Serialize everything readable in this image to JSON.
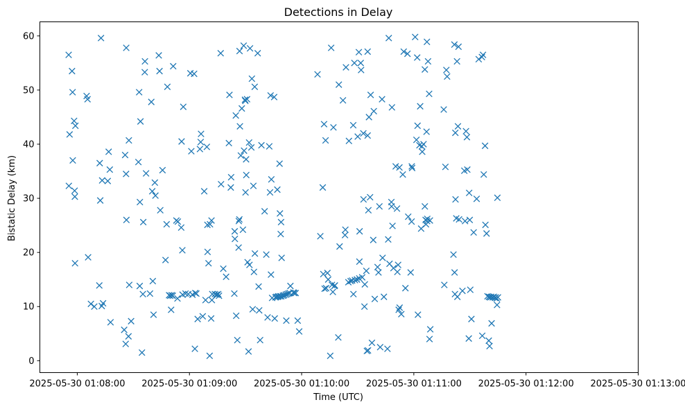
{
  "chart_data": {
    "type": "scatter",
    "title": "Detections in Delay",
    "xlabel": "Time (UTC)",
    "ylabel": "Bistatic Delay (km)",
    "marker": "x",
    "color": "#1f77b4",
    "x_unit": "seconds after 2025-05-30 01:07:40",
    "xlim": [
      0,
      320
    ],
    "ylim": [
      -2.2,
      62.6
    ],
    "xticks": [
      {
        "value": 20,
        "label": "2025-05-30 01:08:00"
      },
      {
        "value": 80,
        "label": "2025-05-30 01:09:00"
      },
      {
        "value": 140,
        "label": "2025-05-30 01:10:00"
      },
      {
        "value": 200,
        "label": "2025-05-30 01:11:00"
      },
      {
        "value": 260,
        "label": "2025-05-30 01:12:00"
      },
      {
        "value": 320,
        "label": "2025-05-30 01:13:00"
      }
    ],
    "yticks": [
      {
        "value": 0,
        "label": "0"
      },
      {
        "value": 10,
        "label": "10"
      },
      {
        "value": 20,
        "label": "20"
      },
      {
        "value": 30,
        "label": "30"
      },
      {
        "value": 40,
        "label": "40"
      },
      {
        "value": 50,
        "label": "50"
      },
      {
        "value": 60,
        "label": "60"
      }
    ],
    "points": [
      [
        15.4,
        56.5
      ],
      [
        15.5,
        32.3
      ],
      [
        15.9,
        41.8
      ],
      [
        17.2,
        53.5
      ],
      [
        17.5,
        49.6
      ],
      [
        17.6,
        37.0
      ],
      [
        18.3,
        44.3
      ],
      [
        18.6,
        31.4
      ],
      [
        18.7,
        30.3
      ],
      [
        18.8,
        18.0
      ],
      [
        19.0,
        43.4
      ],
      [
        25.0,
        48.9
      ],
      [
        25.5,
        48.3
      ],
      [
        25.8,
        19.1
      ],
      [
        27.3,
        10.5
      ],
      [
        29.1,
        10.0
      ],
      [
        31.8,
        13.9
      ],
      [
        32.0,
        36.5
      ],
      [
        32.3,
        29.6
      ],
      [
        32.7,
        59.6
      ],
      [
        33.1,
        10.1
      ],
      [
        33.3,
        33.3
      ],
      [
        33.8,
        10.6
      ],
      [
        36.3,
        33.2
      ],
      [
        36.8,
        38.6
      ],
      [
        37.4,
        35.3
      ],
      [
        37.8,
        7.1
      ],
      [
        45.1,
        5.7
      ],
      [
        45.6,
        38.0
      ],
      [
        45.9,
        3.1
      ],
      [
        46.1,
        34.5
      ],
      [
        46.2,
        57.8
      ],
      [
        46.3,
        26.0
      ],
      [
        47.4,
        4.5
      ],
      [
        47.6,
        40.7
      ],
      [
        47.8,
        14.0
      ],
      [
        48.8,
        7.3
      ],
      [
        52.7,
        36.7
      ],
      [
        53.1,
        49.6
      ],
      [
        53.4,
        13.8
      ],
      [
        53.5,
        29.3
      ],
      [
        53.8,
        44.2
      ],
      [
        54.6,
        1.5
      ],
      [
        55.1,
        12.3
      ],
      [
        55.3,
        25.6
      ],
      [
        56.1,
        53.3
      ],
      [
        56.2,
        55.3
      ],
      [
        56.8,
        34.6
      ],
      [
        58.9,
        12.4
      ],
      [
        59.6,
        47.8
      ],
      [
        60.1,
        31.3
      ],
      [
        60.4,
        14.7
      ],
      [
        60.8,
        8.5
      ],
      [
        61.5,
        32.9
      ],
      [
        61.8,
        30.5
      ],
      [
        63.6,
        56.4
      ],
      [
        64.0,
        53.5
      ],
      [
        64.4,
        27.8
      ],
      [
        65.6,
        35.2
      ],
      [
        67.2,
        18.6
      ],
      [
        67.8,
        25.2
      ],
      [
        68.2,
        50.6
      ],
      [
        69.1,
        12.1
      ],
      [
        69.7,
        12.0
      ],
      [
        70.2,
        9.4
      ],
      [
        70.5,
        12.1
      ],
      [
        71.1,
        12.0
      ],
      [
        71.3,
        54.4
      ],
      [
        73.0,
        25.9
      ],
      [
        73.6,
        11.5
      ],
      [
        73.8,
        25.7
      ],
      [
        75.6,
        24.6
      ],
      [
        75.8,
        40.5
      ],
      [
        76.2,
        20.4
      ],
      [
        76.3,
        12.2
      ],
      [
        76.7,
        46.9
      ],
      [
        77.9,
        12.4
      ],
      [
        79.4,
        12.3
      ],
      [
        80.5,
        53.1
      ],
      [
        81.0,
        38.7
      ],
      [
        81.6,
        12.2
      ],
      [
        82.5,
        53.0
      ],
      [
        82.9,
        2.2
      ],
      [
        83.1,
        12.5
      ],
      [
        83.7,
        12.4
      ],
      [
        84.4,
        7.7
      ],
      [
        85.6,
        39.1
      ],
      [
        86.0,
        40.4
      ],
      [
        86.2,
        41.9
      ],
      [
        87.1,
        8.2
      ],
      [
        87.9,
        31.3
      ],
      [
        88.6,
        11.2
      ],
      [
        89.3,
        39.5
      ],
      [
        89.6,
        25.1
      ],
      [
        89.7,
        20.1
      ],
      [
        90.2,
        18.0
      ],
      [
        90.8,
        0.9
      ],
      [
        91.0,
        25.2
      ],
      [
        91.6,
        7.8
      ],
      [
        91.8,
        25.9
      ],
      [
        92.0,
        11.2
      ],
      [
        92.2,
        12.3
      ],
      [
        93.6,
        12.3
      ],
      [
        94.5,
        12.2
      ],
      [
        95.4,
        12.3
      ],
      [
        95.8,
        12.0
      ],
      [
        96.7,
        56.8
      ],
      [
        96.9,
        32.6
      ],
      [
        98.1,
        17.0
      ],
      [
        99.6,
        15.5
      ],
      [
        101.1,
        40.2
      ],
      [
        101.4,
        49.1
      ],
      [
        102.1,
        32.0
      ],
      [
        102.3,
        33.9
      ],
      [
        104.0,
        12.4
      ],
      [
        104.2,
        23.9
      ],
      [
        104.3,
        22.5
      ],
      [
        104.8,
        45.3
      ],
      [
        105.0,
        8.3
      ],
      [
        105.6,
        3.8
      ],
      [
        106.3,
        20.9
      ],
      [
        106.4,
        25.8
      ],
      [
        106.7,
        26.1
      ],
      [
        106.8,
        57.2
      ],
      [
        107.0,
        43.3
      ],
      [
        107.5,
        37.9
      ],
      [
        108.0,
        46.6
      ],
      [
        108.6,
        24.2
      ],
      [
        109.0,
        58.2
      ],
      [
        109.2,
        38.8
      ],
      [
        109.7,
        48.2
      ],
      [
        109.9,
        48.0
      ],
      [
        110.0,
        31.1
      ],
      [
        110.3,
        37.2
      ],
      [
        110.4,
        34.3
      ],
      [
        110.8,
        48.3
      ],
      [
        111.1,
        18.2
      ],
      [
        111.6,
        1.7
      ],
      [
        111.9,
        40.3
      ],
      [
        112.1,
        17.7
      ],
      [
        112.4,
        57.7
      ],
      [
        113.1,
        39.4
      ],
      [
        113.4,
        52.1
      ],
      [
        113.8,
        9.5
      ],
      [
        114.2,
        32.3
      ],
      [
        114.5,
        16.4
      ],
      [
        114.9,
        50.6
      ],
      [
        115.0,
        19.8
      ],
      [
        116.5,
        56.8
      ],
      [
        117.0,
        13.7
      ],
      [
        117.3,
        9.3
      ],
      [
        117.8,
        3.8
      ],
      [
        118.5,
        39.8
      ],
      [
        120.2,
        27.6
      ],
      [
        121.1,
        19.6
      ],
      [
        121.8,
        8.0
      ],
      [
        122.7,
        39.6
      ],
      [
        123.1,
        31.1
      ],
      [
        123.4,
        49.0
      ],
      [
        123.6,
        15.9
      ],
      [
        123.8,
        33.5
      ],
      [
        124.2,
        11.6
      ],
      [
        125.3,
        48.7
      ],
      [
        125.6,
        7.8
      ],
      [
        126.0,
        11.7
      ],
      [
        126.5,
        11.8
      ],
      [
        127.0,
        31.6
      ],
      [
        127.3,
        11.8
      ],
      [
        127.6,
        11.9
      ],
      [
        128.2,
        36.4
      ],
      [
        128.4,
        27.2
      ],
      [
        128.5,
        11.9
      ],
      [
        128.8,
        23.4
      ],
      [
        129.0,
        25.6
      ],
      [
        129.1,
        11.9
      ],
      [
        129.3,
        19.0
      ],
      [
        130.0,
        12.0
      ],
      [
        130.6,
        12.1
      ],
      [
        131.5,
        12.2
      ],
      [
        131.8,
        7.4
      ],
      [
        132.2,
        12.3
      ],
      [
        132.9,
        12.4
      ],
      [
        133.6,
        12.5
      ],
      [
        134.0,
        13.8
      ],
      [
        135.6,
        12.6
      ],
      [
        136.0,
        12.5
      ],
      [
        136.8,
        12.5
      ],
      [
        137.9,
        7.4
      ],
      [
        138.7,
        5.4
      ],
      [
        148.5,
        52.9
      ],
      [
        150.0,
        23.0
      ],
      [
        151.3,
        32.0
      ],
      [
        151.6,
        16.0
      ],
      [
        152.0,
        43.7
      ],
      [
        152.3,
        13.3
      ],
      [
        152.8,
        40.7
      ],
      [
        153.1,
        13.4
      ],
      [
        153.8,
        16.2
      ],
      [
        154.2,
        15.0
      ],
      [
        155.3,
        0.9
      ],
      [
        155.8,
        57.8
      ],
      [
        156.2,
        14.0
      ],
      [
        156.7,
        12.7
      ],
      [
        157.0,
        43.1
      ],
      [
        157.5,
        13.8
      ],
      [
        157.8,
        13.9
      ],
      [
        159.6,
        4.3
      ],
      [
        159.9,
        51.0
      ],
      [
        160.3,
        21.1
      ],
      [
        162.1,
        48.1
      ],
      [
        163.2,
        23.2
      ],
      [
        163.4,
        24.2
      ],
      [
        163.7,
        54.2
      ],
      [
        165.0,
        14.5
      ],
      [
        165.3,
        40.6
      ],
      [
        166.2,
        14.7
      ],
      [
        167.0,
        14.8
      ],
      [
        167.6,
        43.5
      ],
      [
        167.7,
        12.3
      ],
      [
        168.2,
        55.0
      ],
      [
        168.5,
        14.9
      ],
      [
        169.6,
        15.0
      ],
      [
        170.0,
        41.4
      ],
      [
        170.6,
        57.0
      ],
      [
        170.8,
        15.2
      ],
      [
        170.9,
        18.3
      ],
      [
        171.0,
        23.9
      ],
      [
        171.6,
        55.0
      ],
      [
        171.8,
        53.7
      ],
      [
        172.4,
        15.4
      ],
      [
        173.0,
        42.0
      ],
      [
        173.1,
        29.8
      ],
      [
        173.6,
        10.0
      ],
      [
        173.8,
        14.1
      ],
      [
        174.6,
        16.6
      ],
      [
        174.9,
        1.8
      ],
      [
        175.3,
        57.1
      ],
      [
        175.3,
        41.6
      ],
      [
        175.5,
        1.9
      ],
      [
        175.7,
        27.8
      ],
      [
        176.0,
        45.0
      ],
      [
        176.6,
        30.2
      ],
      [
        176.9,
        49.1
      ],
      [
        177.6,
        3.3
      ],
      [
        178.3,
        22.3
      ],
      [
        178.6,
        46.1
      ],
      [
        179.1,
        11.4
      ],
      [
        180.6,
        17.3
      ],
      [
        181.1,
        16.3
      ],
      [
        181.6,
        28.5
      ],
      [
        182.0,
        2.5
      ],
      [
        183.0,
        48.3
      ],
      [
        183.3,
        19.0
      ],
      [
        184.0,
        11.8
      ],
      [
        185.9,
        2.2
      ],
      [
        186.3,
        22.4
      ],
      [
        186.6,
        59.6
      ],
      [
        187.0,
        17.9
      ],
      [
        188.0,
        29.3
      ],
      [
        188.1,
        28.5
      ],
      [
        188.3,
        46.8
      ],
      [
        188.6,
        24.9
      ],
      [
        189.1,
        17.1
      ],
      [
        190.3,
        35.9
      ],
      [
        191.0,
        28.1
      ],
      [
        191.2,
        16.4
      ],
      [
        191.6,
        17.7
      ],
      [
        191.9,
        9.4
      ],
      [
        192.3,
        35.7
      ],
      [
        192.4,
        9.8
      ],
      [
        193.3,
        8.6
      ],
      [
        194.1,
        34.4
      ],
      [
        194.6,
        57.1
      ],
      [
        195.5,
        13.4
      ],
      [
        196.6,
        56.7
      ],
      [
        197.0,
        26.6
      ],
      [
        198.3,
        16.3
      ],
      [
        198.8,
        25.7
      ],
      [
        198.9,
        35.9
      ],
      [
        199.1,
        35.6
      ],
      [
        200.7,
        59.8
      ],
      [
        201.4,
        40.8
      ],
      [
        201.8,
        56.0
      ],
      [
        202.0,
        43.4
      ],
      [
        202.2,
        8.5
      ],
      [
        203.0,
        39.8
      ],
      [
        203.4,
        47.0
      ],
      [
        203.9,
        24.4
      ],
      [
        204.3,
        39.6
      ],
      [
        204.5,
        38.6
      ],
      [
        205.2,
        40.0
      ],
      [
        205.9,
        53.8
      ],
      [
        205.9,
        28.5
      ],
      [
        206.3,
        26.0
      ],
      [
        206.5,
        25.2
      ],
      [
        206.8,
        42.3
      ],
      [
        207.0,
        58.9
      ],
      [
        207.1,
        25.8
      ],
      [
        207.2,
        26.2
      ],
      [
        207.6,
        55.3
      ],
      [
        208.2,
        49.3
      ],
      [
        208.4,
        4.0
      ],
      [
        208.6,
        25.9
      ],
      [
        208.8,
        5.8
      ],
      [
        216.0,
        46.4
      ],
      [
        216.3,
        14.0
      ],
      [
        216.9,
        35.8
      ],
      [
        217.4,
        53.7
      ],
      [
        217.8,
        52.5
      ],
      [
        221.2,
        19.6
      ],
      [
        221.7,
        58.4
      ],
      [
        221.8,
        16.3
      ],
      [
        222.0,
        12.3
      ],
      [
        222.2,
        42.1
      ],
      [
        222.3,
        29.8
      ],
      [
        222.7,
        26.3
      ],
      [
        223.1,
        55.3
      ],
      [
        223.3,
        11.8
      ],
      [
        223.6,
        43.3
      ],
      [
        223.9,
        58.0
      ],
      [
        224.2,
        26.1
      ],
      [
        226.0,
        12.9
      ],
      [
        227.0,
        35.1
      ],
      [
        227.4,
        25.8
      ],
      [
        227.9,
        42.4
      ],
      [
        228.4,
        41.3
      ],
      [
        228.6,
        35.3
      ],
      [
        229.4,
        4.1
      ],
      [
        229.6,
        31.0
      ],
      [
        229.9,
        26.0
      ],
      [
        230.2,
        13.1
      ],
      [
        230.8,
        7.7
      ],
      [
        232.0,
        23.7
      ],
      [
        233.6,
        29.9
      ],
      [
        234.7,
        55.7
      ],
      [
        236.4,
        56.1
      ],
      [
        236.6,
        4.6
      ],
      [
        237.0,
        56.5
      ],
      [
        237.4,
        34.4
      ],
      [
        238.1,
        39.7
      ],
      [
        238.3,
        25.1
      ],
      [
        238.9,
        23.5
      ],
      [
        239.4,
        11.9
      ],
      [
        240.1,
        3.7
      ],
      [
        240.2,
        11.8
      ],
      [
        240.5,
        2.7
      ],
      [
        240.8,
        11.7
      ],
      [
        241.3,
        11.8
      ],
      [
        241.6,
        6.9
      ],
      [
        242.2,
        11.7
      ],
      [
        242.8,
        11.8
      ],
      [
        243.4,
        11.6
      ],
      [
        243.8,
        11.7
      ],
      [
        244.3,
        11.5
      ],
      [
        244.5,
        10.3
      ],
      [
        244.7,
        30.1
      ],
      [
        245.0,
        11.7
      ]
    ]
  }
}
